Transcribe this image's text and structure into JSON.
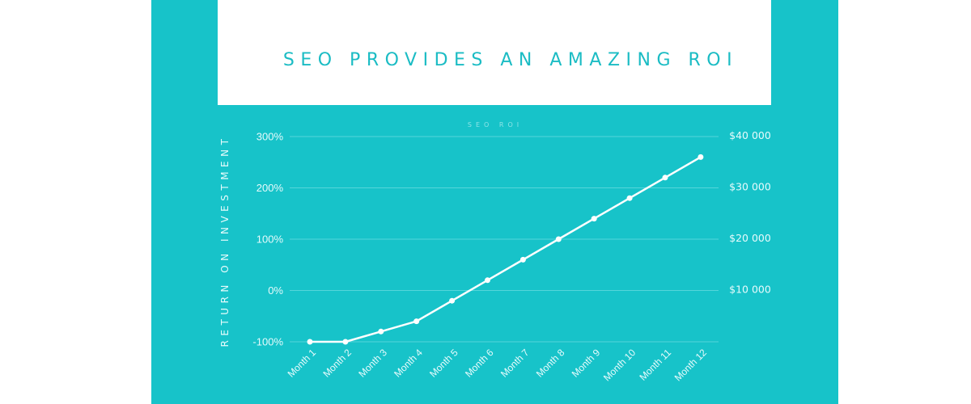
{
  "header": {
    "title": "SEO PROVIDES AN AMAZING ROI"
  },
  "colors": {
    "background": "#17c3c9",
    "title_text": "#1bbcc4",
    "line": "#ffffff",
    "gridline": "#55d6da"
  },
  "chart_data": {
    "type": "line",
    "title": "SEO ROI",
    "xlabel": "",
    "ylabel": "RETURN ON INVESTMENT",
    "categories": [
      "Month 1",
      "Month 2",
      "Month 3",
      "Month 4",
      "Month 5",
      "Month 6",
      "Month 7",
      "Month 8",
      "Month 9",
      "Month 10",
      "Month 11",
      "Month 12"
    ],
    "series": [
      {
        "name": "ROI",
        "values": [
          -100,
          -100,
          -80,
          -60,
          -20,
          20,
          60,
          100,
          140,
          180,
          220,
          260
        ]
      }
    ],
    "ylim": [
      -100,
      300
    ],
    "y_ticks": [
      "300%",
      "200%",
      "100%",
      "0%",
      "-100%"
    ],
    "y2_ticks": [
      "$40 000",
      "$30 000",
      "$20 000",
      "$10 000"
    ],
    "grid": true,
    "legend": "none"
  }
}
